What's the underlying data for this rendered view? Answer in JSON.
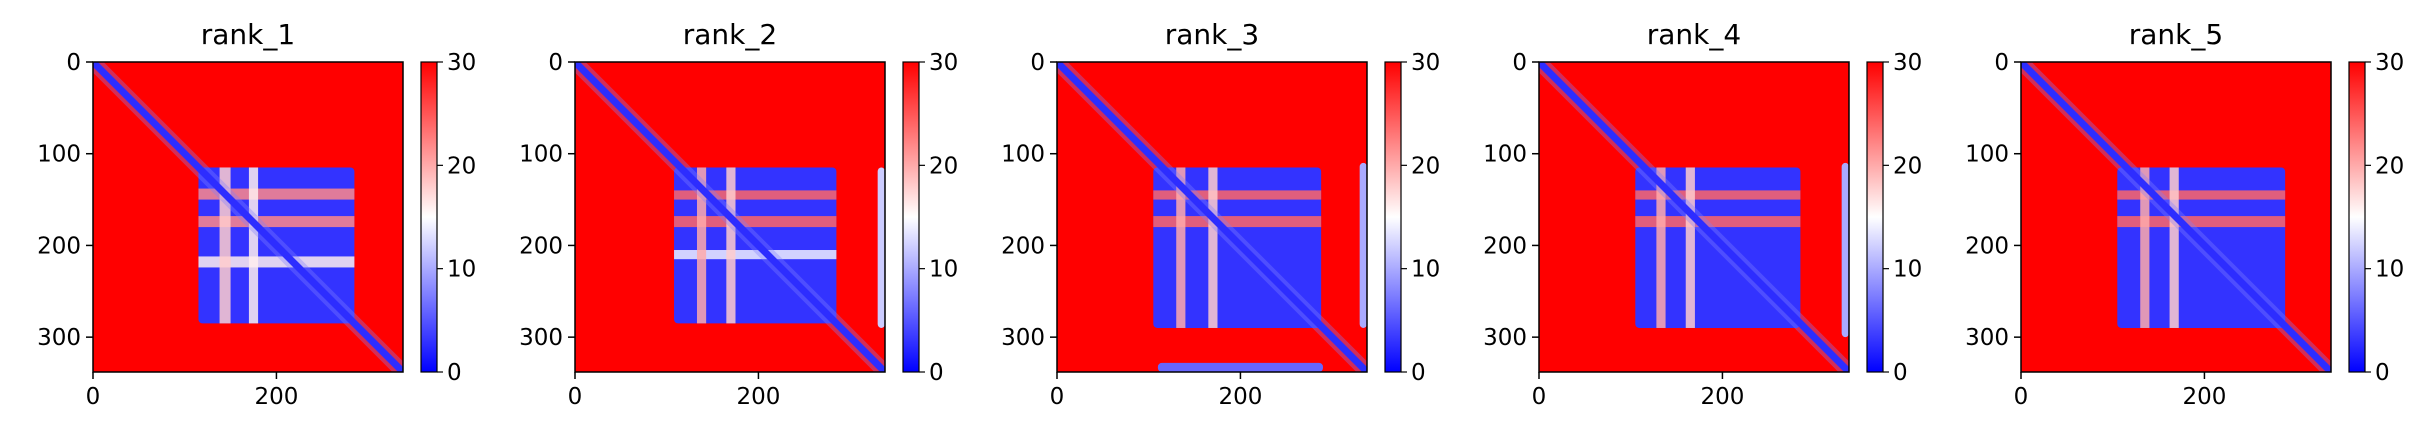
{
  "chart_data": [
    {
      "type": "heatmap",
      "title": "rank_1",
      "xlim": [
        0,
        338
      ],
      "ylim": [
        338,
        0
      ],
      "x_ticks": [
        0,
        200
      ],
      "y_ticks": [
        0,
        100,
        200,
        300
      ],
      "colorbar": {
        "ticks": [
          0,
          10,
          20,
          30
        ],
        "range": [
          0,
          30
        ],
        "colors": [
          "#0000ff",
          "#ffffff",
          "#ff0000"
        ]
      },
      "diagonal_error": 0,
      "background_error": 30,
      "blocks": [
        {
          "rows": [
            115,
            285
          ],
          "cols": [
            115,
            285
          ],
          "error": 3
        }
      ],
      "stripes": [
        {
          "axis": "row",
          "range": [
            138,
            150
          ],
          "error": 22
        },
        {
          "axis": "row",
          "range": [
            168,
            180
          ],
          "error": 22
        },
        {
          "axis": "row",
          "range": [
            212,
            224
          ],
          "error": 16
        },
        {
          "axis": "col",
          "range": [
            138,
            150
          ],
          "error": 18
        },
        {
          "axis": "col",
          "range": [
            170,
            180
          ],
          "error": 16
        }
      ]
    },
    {
      "type": "heatmap",
      "title": "rank_2",
      "xlim": [
        0,
        338
      ],
      "ylim": [
        338,
        0
      ],
      "x_ticks": [
        0,
        200
      ],
      "y_ticks": [
        0,
        100,
        200,
        300
      ],
      "colorbar": {
        "ticks": [
          0,
          10,
          20,
          30
        ],
        "range": [
          0,
          30
        ],
        "colors": [
          "#0000ff",
          "#ffffff",
          "#ff0000"
        ]
      },
      "diagonal_error": 0,
      "background_error": 30,
      "blocks": [
        {
          "rows": [
            115,
            285
          ],
          "cols": [
            108,
            285
          ],
          "error": 3
        },
        {
          "rows": [
            115,
            290
          ],
          "cols": [
            330,
            338
          ],
          "error": 12
        }
      ],
      "stripes": [
        {
          "axis": "row",
          "range": [
            140,
            150
          ],
          "error": 24
        },
        {
          "axis": "row",
          "range": [
            168,
            180
          ],
          "error": 24
        },
        {
          "axis": "row",
          "range": [
            205,
            215
          ],
          "error": 14
        },
        {
          "axis": "col",
          "range": [
            133,
            143
          ],
          "error": 20
        },
        {
          "axis": "col",
          "range": [
            165,
            175
          ],
          "error": 18
        }
      ]
    },
    {
      "type": "heatmap",
      "title": "rank_3",
      "xlim": [
        0,
        338
      ],
      "ylim": [
        338,
        0
      ],
      "x_ticks": [
        0,
        200
      ],
      "y_ticks": [
        0,
        100,
        200,
        300
      ],
      "colorbar": {
        "ticks": [
          0,
          10,
          20,
          30
        ],
        "range": [
          0,
          30
        ],
        "colors": [
          "#0000ff",
          "#ffffff",
          "#ff0000"
        ]
      },
      "diagonal_error": 0,
      "background_error": 30,
      "blocks": [
        {
          "rows": [
            115,
            290
          ],
          "cols": [
            105,
            288
          ],
          "error": 3
        },
        {
          "rows": [
            328,
            338
          ],
          "cols": [
            110,
            290
          ],
          "error": 6
        },
        {
          "rows": [
            110,
            290
          ],
          "cols": [
            330,
            338
          ],
          "error": 10
        }
      ],
      "stripes": [
        {
          "axis": "row",
          "range": [
            140,
            150
          ],
          "error": 24
        },
        {
          "axis": "row",
          "range": [
            168,
            180
          ],
          "error": 24
        },
        {
          "axis": "col",
          "range": [
            130,
            140
          ],
          "error": 20
        },
        {
          "axis": "col",
          "range": [
            165,
            175
          ],
          "error": 18
        }
      ]
    },
    {
      "type": "heatmap",
      "title": "rank_4",
      "xlim": [
        0,
        338
      ],
      "ylim": [
        338,
        0
      ],
      "x_ticks": [
        0,
        200
      ],
      "y_ticks": [
        0,
        100,
        200,
        300
      ],
      "colorbar": {
        "ticks": [
          0,
          10,
          20,
          30
        ],
        "range": [
          0,
          30
        ],
        "colors": [
          "#0000ff",
          "#ffffff",
          "#ff0000"
        ]
      },
      "diagonal_error": 0,
      "background_error": 30,
      "blocks": [
        {
          "rows": [
            115,
            290
          ],
          "cols": [
            105,
            285
          ],
          "error": 3
        },
        {
          "rows": [
            110,
            300
          ],
          "cols": [
            330,
            338
          ],
          "error": 10
        }
      ],
      "stripes": [
        {
          "axis": "row",
          "range": [
            140,
            150
          ],
          "error": 24
        },
        {
          "axis": "row",
          "range": [
            168,
            180
          ],
          "error": 24
        },
        {
          "axis": "col",
          "range": [
            128,
            138
          ],
          "error": 20
        },
        {
          "axis": "col",
          "range": [
            160,
            170
          ],
          "error": 18
        }
      ]
    },
    {
      "type": "heatmap",
      "title": "rank_5",
      "xlim": [
        0,
        338
      ],
      "ylim": [
        338,
        0
      ],
      "x_ticks": [
        0,
        200
      ],
      "y_ticks": [
        0,
        100,
        200,
        300
      ],
      "colorbar": {
        "ticks": [
          0,
          10,
          20,
          30
        ],
        "range": [
          0,
          30
        ],
        "colors": [
          "#0000ff",
          "#ffffff",
          "#ff0000"
        ]
      },
      "diagonal_error": 0,
      "background_error": 30,
      "blocks": [
        {
          "rows": [
            115,
            290
          ],
          "cols": [
            105,
            288
          ],
          "error": 3
        }
      ],
      "stripes": [
        {
          "axis": "row",
          "range": [
            140,
            150
          ],
          "error": 24
        },
        {
          "axis": "row",
          "range": [
            168,
            180
          ],
          "error": 24
        },
        {
          "axis": "col",
          "range": [
            130,
            140
          ],
          "error": 20
        },
        {
          "axis": "col",
          "range": [
            162,
            172
          ],
          "error": 18
        }
      ]
    }
  ]
}
